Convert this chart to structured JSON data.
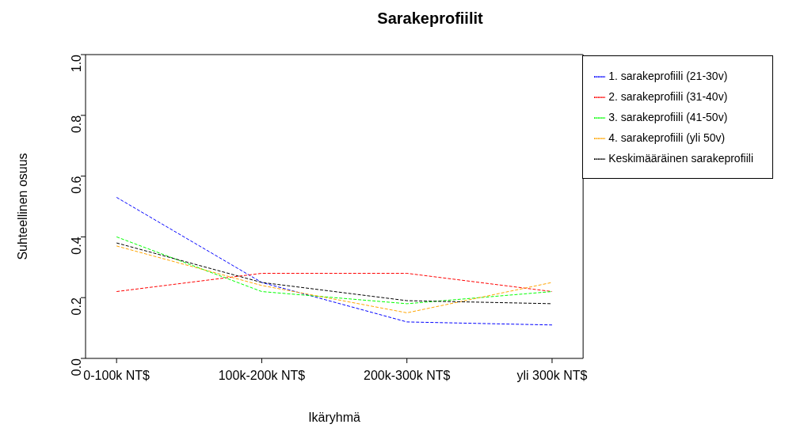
{
  "chart_data": {
    "type": "line",
    "title": "Sarakeprofiilit",
    "xlabel": "Ikäryhmä",
    "ylabel": "Suhteellinen osuus",
    "categories": [
      "0-100k NT$",
      "100k-200k NT$",
      "200k-300k NT$",
      "yli 300k NT$"
    ],
    "series": [
      {
        "name": "1. sarakeprofiili (21-30v)",
        "color": "#0000ff",
        "values": [
          0.53,
          0.25,
          0.12,
          0.11
        ]
      },
      {
        "name": "2. sarakeprofiili (31-40v)",
        "color": "#ff0000",
        "values": [
          0.22,
          0.28,
          0.28,
          0.22
        ]
      },
      {
        "name": "3. sarakeprofiili (41-50v)",
        "color": "#00ff00",
        "values": [
          0.4,
          0.22,
          0.18,
          0.22
        ]
      },
      {
        "name": "4. sarakeprofiili (yli 50v)",
        "color": "#ffa500",
        "values": [
          0.37,
          0.24,
          0.15,
          0.25
        ]
      },
      {
        "name": "Keskimääräinen sarakeprofiili",
        "color": "#000000",
        "values": [
          0.38,
          0.25,
          0.19,
          0.18
        ]
      }
    ],
    "ylim": [
      0,
      1
    ],
    "yticks": [
      {
        "value": 0,
        "label": "0.0"
      },
      0.2,
      0.4,
      0.6,
      0.8,
      {
        "value": 1,
        "label": "1.0"
      }
    ],
    "legend": "top right",
    "line_style": "dashed",
    "marker": "none"
  }
}
